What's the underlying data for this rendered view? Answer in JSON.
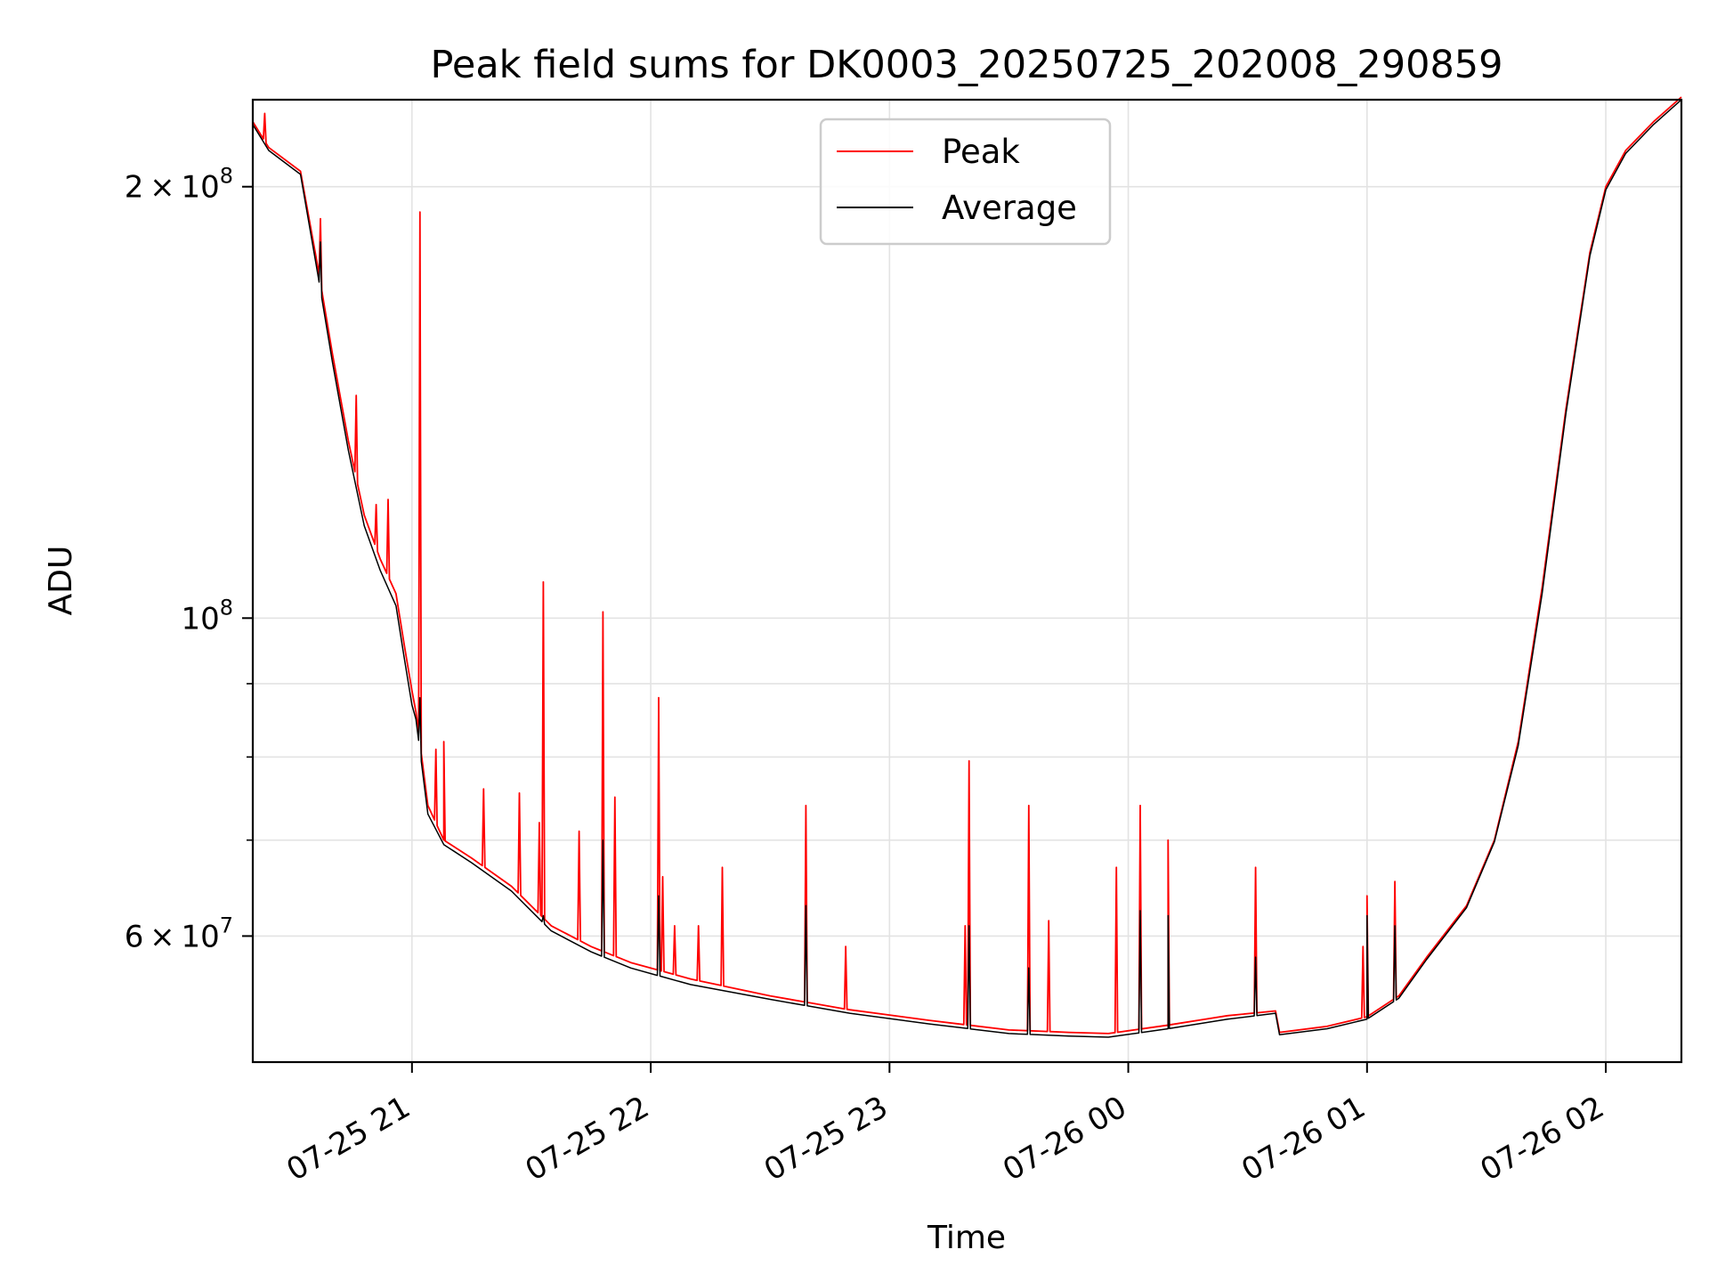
{
  "chart_data": {
    "type": "line",
    "title": "Peak field sums for DK0003_20250725_202008_290859",
    "xlabel": "Time",
    "ylabel": "ADU",
    "yscale": "log",
    "xlim": [
      "2025-07-25 20:20",
      "2025-07-26 02:19"
    ],
    "ylim": [
      49000000,
      230000000
    ],
    "grid": true,
    "legend_position": "top-center",
    "x_ticks": [
      {
        "value": "2025-07-25 21:00",
        "label": "07-25 21"
      },
      {
        "value": "2025-07-25 22:00",
        "label": "07-25 22"
      },
      {
        "value": "2025-07-25 23:00",
        "label": "07-25 23"
      },
      {
        "value": "2025-07-26 00:00",
        "label": "07-26 00"
      },
      {
        "value": "2025-07-26 01:00",
        "label": "07-26 01"
      },
      {
        "value": "2025-07-26 02:00",
        "label": "07-26 02"
      }
    ],
    "y_ticks": [
      {
        "value": 200000000,
        "mantissa": "2",
        "times": "×",
        "base": "10",
        "exp": "8"
      },
      {
        "value": 100000000,
        "mantissa": "",
        "times": "",
        "base": "10",
        "exp": "8"
      },
      {
        "value": 60000000,
        "mantissa": "6",
        "times": "×",
        "base": "10",
        "exp": "7"
      }
    ],
    "y_minor_ticks": [
      70000000,
      80000000,
      90000000
    ],
    "x": [
      "2025-07-25 20:20",
      "2025-07-25 20:24",
      "2025-07-25 20:32",
      "2025-07-25 20:36",
      "2025-07-25 20:40",
      "2025-07-25 20:44",
      "2025-07-25 20:48",
      "2025-07-25 20:52",
      "2025-07-25 20:56",
      "2025-07-25 20:58",
      "2025-07-25 21:00",
      "2025-07-25 21:01",
      "2025-07-25 21:04",
      "2025-07-25 21:08",
      "2025-07-25 21:15",
      "2025-07-25 21:25",
      "2025-07-25 21:35",
      "2025-07-25 21:45",
      "2025-07-25 21:55",
      "2025-07-25 22:10",
      "2025-07-25 22:30",
      "2025-07-25 22:50",
      "2025-07-25 23:10",
      "2025-07-25 23:30",
      "2025-07-25 23:45",
      "2025-07-25 23:55",
      "2025-07-26 00:10",
      "2025-07-26 00:25",
      "2025-07-26 00:37",
      "2025-07-26 00:38",
      "2025-07-26 00:50",
      "2025-07-26 01:00",
      "2025-07-26 01:08",
      "2025-07-26 01:15",
      "2025-07-26 01:25",
      "2025-07-26 01:32",
      "2025-07-26 01:38",
      "2025-07-26 01:44",
      "2025-07-26 01:50",
      "2025-07-26 01:56",
      "2025-07-26 02:00",
      "2025-07-26 02:05",
      "2025-07-26 02:12",
      "2025-07-26 02:19"
    ],
    "series": [
      {
        "name": "Peak",
        "color": "#ff0000",
        "values": [
          222000000,
          213000000,
          205000000,
          178000000,
          153000000,
          133000000,
          118000000,
          110000000,
          104000000,
          96000000,
          89000000,
          86000000,
          74000000,
          70000000,
          68000000,
          65000000,
          61000000,
          59000000,
          57500000,
          56000000,
          54500000,
          53300000,
          52400000,
          51600000,
          51400000,
          51300000,
          52000000,
          52800000,
          53200000,
          51400000,
          51900000,
          52700000,
          54500000,
          58000000,
          63000000,
          70000000,
          82000000,
          105000000,
          140000000,
          180000000,
          200000000,
          212000000,
          222000000,
          231000000
        ],
        "spikes": [
          {
            "x": "2025-07-25 20:23",
            "y": 225000000
          },
          {
            "x": "2025-07-25 20:37",
            "y": 190000000
          },
          {
            "x": "2025-07-25 20:46",
            "y": 143000000
          },
          {
            "x": "2025-07-25 20:51",
            "y": 120000000
          },
          {
            "x": "2025-07-25 20:54",
            "y": 121000000
          },
          {
            "x": "2025-07-25 21:02",
            "y": 192000000
          },
          {
            "x": "2025-07-25 21:06",
            "y": 81000000
          },
          {
            "x": "2025-07-25 21:08",
            "y": 82000000
          },
          {
            "x": "2025-07-25 21:18",
            "y": 76000000
          },
          {
            "x": "2025-07-25 21:27",
            "y": 75500000
          },
          {
            "x": "2025-07-25 21:32",
            "y": 72000000
          },
          {
            "x": "2025-07-25 21:33",
            "y": 106000000
          },
          {
            "x": "2025-07-25 21:42",
            "y": 71000000
          },
          {
            "x": "2025-07-25 21:48",
            "y": 101000000
          },
          {
            "x": "2025-07-25 21:51",
            "y": 75000000
          },
          {
            "x": "2025-07-25 22:02",
            "y": 88000000
          },
          {
            "x": "2025-07-25 22:03",
            "y": 66000000
          },
          {
            "x": "2025-07-25 22:06",
            "y": 61000000
          },
          {
            "x": "2025-07-25 22:12",
            "y": 61000000
          },
          {
            "x": "2025-07-25 22:18",
            "y": 67000000
          },
          {
            "x": "2025-07-25 22:39",
            "y": 74000000
          },
          {
            "x": "2025-07-25 22:49",
            "y": 59000000
          },
          {
            "x": "2025-07-25 23:19",
            "y": 61000000
          },
          {
            "x": "2025-07-25 23:20",
            "y": 79500000
          },
          {
            "x": "2025-07-25 23:35",
            "y": 74000000
          },
          {
            "x": "2025-07-25 23:40",
            "y": 61500000
          },
          {
            "x": "2025-07-25 23:57",
            "y": 67000000
          },
          {
            "x": "2025-07-26 00:03",
            "y": 74000000
          },
          {
            "x": "2025-07-26 00:10",
            "y": 70000000
          },
          {
            "x": "2025-07-26 00:32",
            "y": 67000000
          },
          {
            "x": "2025-07-26 00:59",
            "y": 59000000
          },
          {
            "x": "2025-07-26 01:00",
            "y": 64000000
          },
          {
            "x": "2025-07-26 01:07",
            "y": 65500000
          }
        ]
      },
      {
        "name": "Average",
        "color": "#000000",
        "values": [
          221000000,
          212000000,
          204000000,
          176000000,
          151000000,
          131000000,
          116000000,
          108000000,
          102000000,
          94000000,
          87000000,
          85000000,
          73000000,
          69500000,
          67500000,
          64500000,
          60500000,
          58500000,
          57000000,
          55500000,
          54200000,
          53000000,
          52100000,
          51300000,
          51100000,
          51000000,
          51700000,
          52500000,
          53000000,
          51200000,
          51700000,
          52500000,
          54300000,
          57800000,
          62800000,
          69800000,
          81500000,
          104000000,
          139000000,
          179000000,
          199000000,
          211000000,
          221000000,
          230000000
        ],
        "spikes": [
          {
            "x": "2025-07-25 20:37",
            "y": 183000000
          },
          {
            "x": "2025-07-25 21:02",
            "y": 88000000
          },
          {
            "x": "2025-07-25 21:33",
            "y": 62000000
          },
          {
            "x": "2025-07-25 21:48",
            "y": 70000000
          },
          {
            "x": "2025-07-25 22:02",
            "y": 64000000
          },
          {
            "x": "2025-07-25 22:39",
            "y": 63000000
          },
          {
            "x": "2025-07-25 23:20",
            "y": 61000000
          },
          {
            "x": "2025-07-25 23:35",
            "y": 57000000
          },
          {
            "x": "2025-07-26 00:03",
            "y": 62500000
          },
          {
            "x": "2025-07-26 00:10",
            "y": 62000000
          },
          {
            "x": "2025-07-26 00:32",
            "y": 58000000
          },
          {
            "x": "2025-07-26 01:00",
            "y": 62000000
          },
          {
            "x": "2025-07-26 01:07",
            "y": 61000000
          }
        ]
      }
    ]
  }
}
